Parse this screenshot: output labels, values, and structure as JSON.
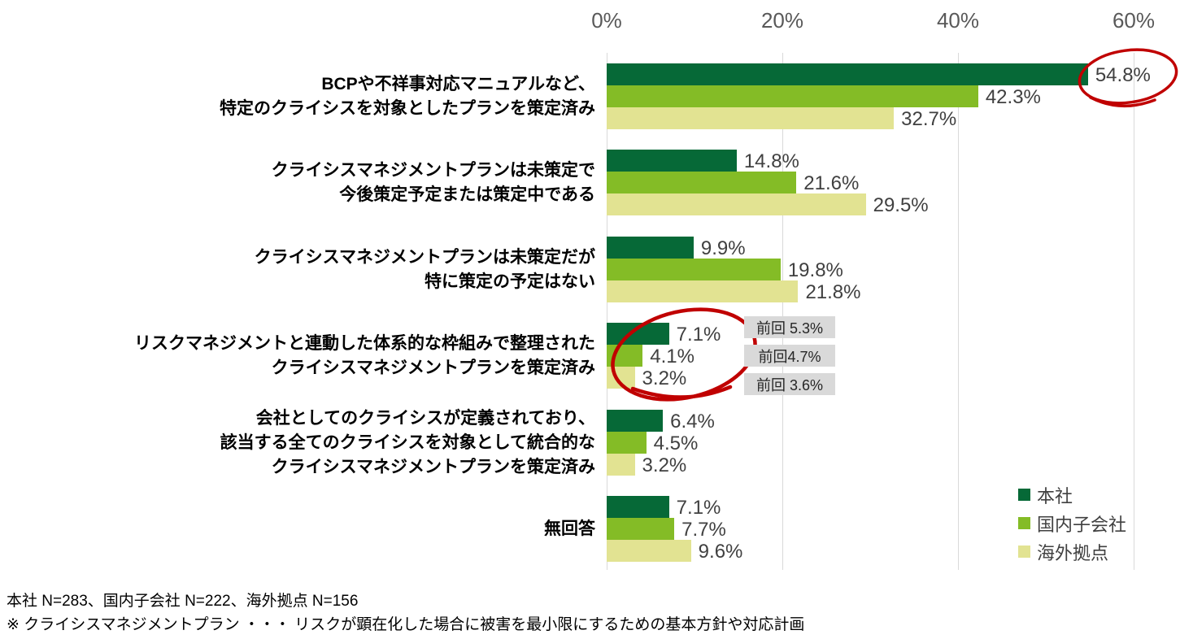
{
  "colors": {
    "background": "#FFFFFF",
    "grid": "#D9D9D9",
    "tick_text": "#595959",
    "value_text": "#404040",
    "category_text": "#000000",
    "legend_text": "#404040",
    "annotation_red": "#C00000",
    "previous_box_bg": "#D9D9D9",
    "previous_box_text": "#262626"
  },
  "chart_data": {
    "type": "bar",
    "orientation": "horizontal",
    "x_axis": {
      "position": "top",
      "ticks": [
        "0%",
        "20%",
        "40%",
        "60%"
      ],
      "values": [
        0,
        20,
        40,
        60
      ],
      "max": 60,
      "grid": true
    },
    "categories": [
      {
        "label_lines": [
          "BCPや不祥事対応マニュアルなど、",
          "特定のクライシスを対象としたプランを策定済み"
        ]
      },
      {
        "label_lines": [
          "クライシスマネジメントプランは未策定で",
          "今後策定予定または策定中である"
        ]
      },
      {
        "label_lines": [
          "クライシスマネジメントプランは未策定だが",
          "特に策定の予定はない"
        ]
      },
      {
        "label_lines": [
          "リスクマネジメントと連動した体系的な枠組みで整理された",
          "クライシスマネジメントプランを策定済み"
        ]
      },
      {
        "label_lines": [
          "会社としてのクライシスが定義されており、",
          "該当する全てのクライシスを対象として統合的な",
          "クライシスマネジメントプランを策定済み"
        ]
      },
      {
        "label_lines": [
          "無回答"
        ]
      }
    ],
    "series": [
      {
        "name": "本社",
        "color": "#066937",
        "values": [
          54.8,
          14.8,
          9.9,
          7.1,
          6.4,
          7.1
        ]
      },
      {
        "name": "国内子会社",
        "color": "#84BC26",
        "values": [
          42.3,
          21.6,
          19.8,
          4.1,
          4.5,
          7.7
        ]
      },
      {
        "name": "海外拠点",
        "color": "#E2E392",
        "values": [
          32.7,
          29.5,
          21.8,
          3.2,
          3.2,
          9.6
        ]
      }
    ],
    "legend": {
      "position": "bottom-right",
      "items": [
        "本社",
        "国内子会社",
        "海外拠点"
      ]
    },
    "annotations": {
      "previous_survey_labels": {
        "category": "リスクマネジメントと連動した体系的な枠組みで整理されたクライシスマネジメントプランを策定済み",
        "labels": [
          "前回 5.3%",
          "前回4.7%",
          "前回 3.6%"
        ]
      },
      "circles": [
        {
          "target": "54.8%"
        },
        {
          "target": "7.1% / 4.1% / 3.2%"
        }
      ]
    }
  },
  "footer": {
    "line1": "本社 N=283、国内子会社 N=222、海外拠点 N=156",
    "line2": "※ クライシスマネジメントプラン ・・・ リスクが顕在化した場合に被害を最小限にするための基本方針や対応計画"
  }
}
